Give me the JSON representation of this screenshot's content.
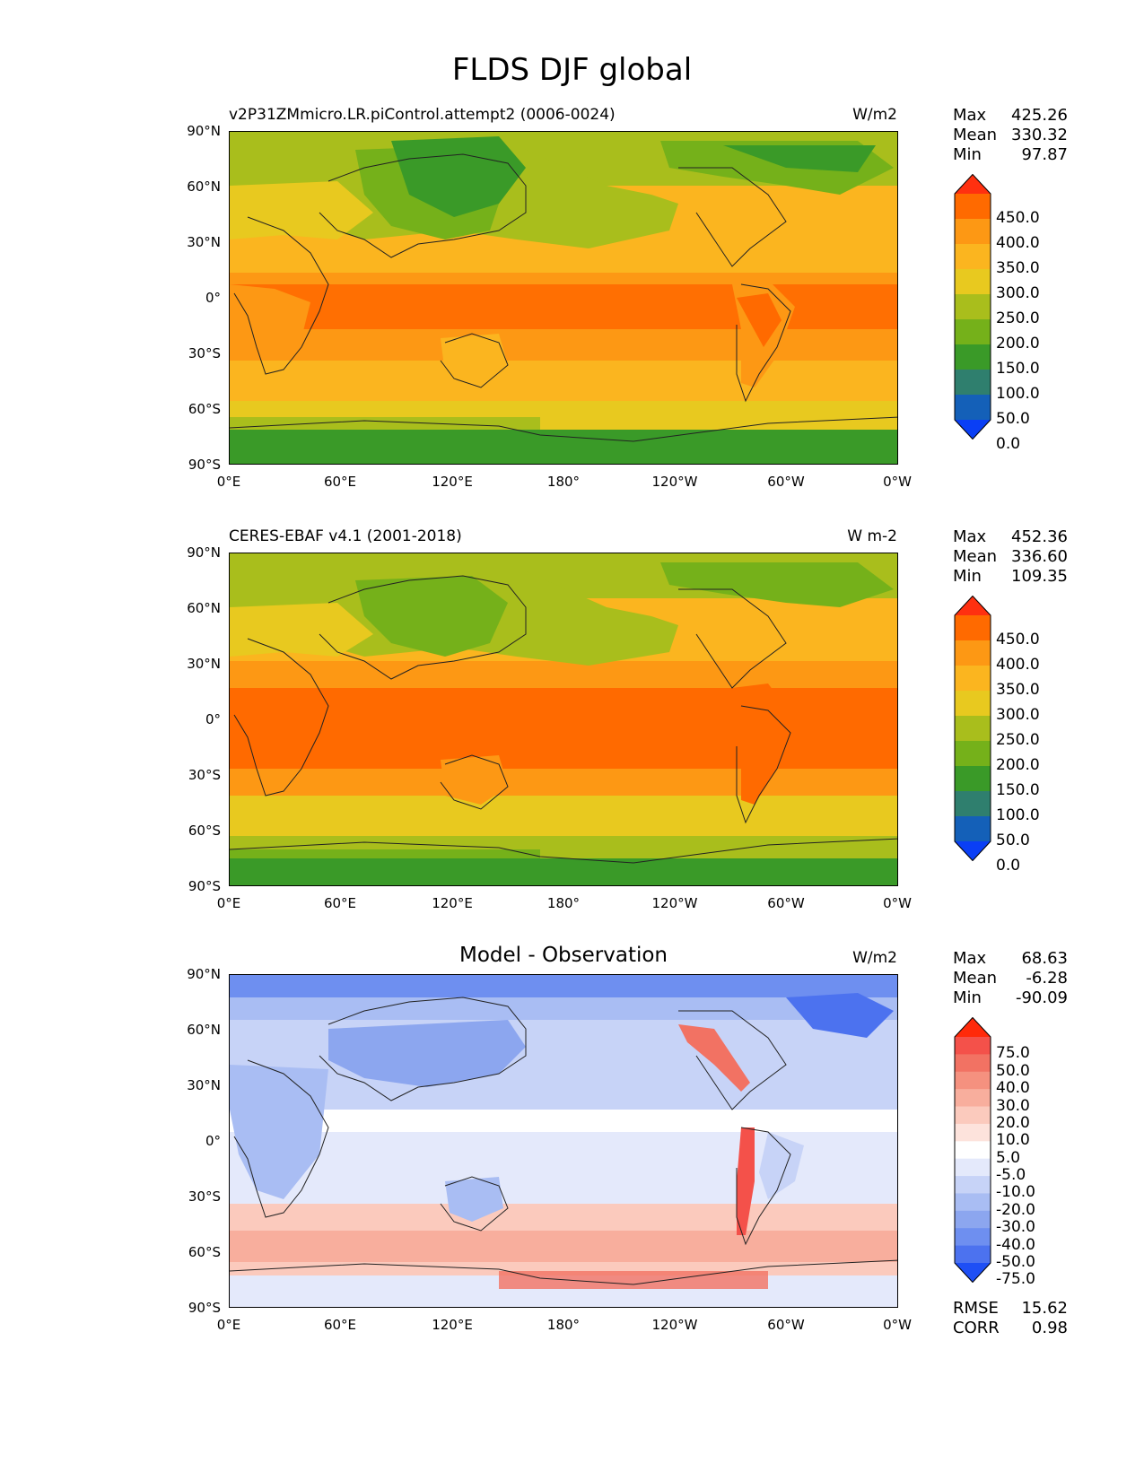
{
  "figure": {
    "title": "FLDS DJF global"
  },
  "axes": {
    "lat_ticks": [
      "90°N",
      "60°N",
      "30°N",
      "0°",
      "30°S",
      "60°S",
      "90°S"
    ],
    "lon_ticks": [
      "0°E",
      "60°E",
      "120°E",
      "180°",
      "120°W",
      "60°W",
      "0°W"
    ]
  },
  "panels": [
    {
      "id": "model",
      "title": "v2P31ZMmicro.LR.piControl.attempt2 (0006-0024)",
      "units": "W/m2",
      "stats": {
        "max_label": "Max",
        "max": "425.26",
        "mean_label": "Mean",
        "mean": "330.32",
        "min_label": "Min",
        "min": "97.87"
      },
      "colorbar": {
        "labels": [
          "450.0",
          "400.0",
          "350.0",
          "300.0",
          "250.0",
          "200.0",
          "150.0",
          "100.0",
          "50.0",
          "0.0"
        ],
        "colors": [
          "#ff3010",
          "#ff6a00",
          "#fd9814",
          "#fbb51f",
          "#e8c91f",
          "#a9be1c",
          "#75b11a",
          "#3a9a28",
          "#2f7f6e",
          "#1460b8",
          "#0a3ff5"
        ]
      }
    },
    {
      "id": "obs",
      "title": "CERES-EBAF v4.1 (2001-2018)",
      "units": "W m-2",
      "stats": {
        "max_label": "Max",
        "max": "452.36",
        "mean_label": "Mean",
        "mean": "336.60",
        "min_label": "Min",
        "min": "109.35"
      },
      "colorbar": {
        "labels": [
          "450.0",
          "400.0",
          "350.0",
          "300.0",
          "250.0",
          "200.0",
          "150.0",
          "100.0",
          "50.0",
          "0.0"
        ],
        "colors": [
          "#ff3010",
          "#ff6a00",
          "#fd9814",
          "#fbb51f",
          "#e8c91f",
          "#a9be1c",
          "#75b11a",
          "#3a9a28",
          "#2f7f6e",
          "#1460b8",
          "#0a3ff5"
        ]
      }
    },
    {
      "id": "diff",
      "title": "Model - Observation",
      "units": "W/m2",
      "stats": {
        "max_label": "Max",
        "max": "68.63",
        "mean_label": "Mean",
        "mean": "-6.28",
        "min_label": "Min",
        "min": "-90.09"
      },
      "colorbar": {
        "labels": [
          "75.0",
          "50.0",
          "40.0",
          "30.0",
          "20.0",
          "10.0",
          "5.0",
          "-5.0",
          "-10.0",
          "-20.0",
          "-30.0",
          "-40.0",
          "-50.0",
          "-75.0"
        ],
        "colors": [
          "#ff2a0a",
          "#f4514a",
          "#f27263",
          "#f5917f",
          "#f8ae9d",
          "#fbcabd",
          "#fde3dc",
          "#ffffff",
          "#e4e9fb",
          "#c7d3f7",
          "#a9bdf3",
          "#8ca6ef",
          "#6e8ff0",
          "#4c72ef",
          "#1e4ff5"
        ]
      },
      "rmse_label": "RMSE",
      "rmse": "15.62",
      "corr_label": "CORR",
      "corr": "0.98"
    }
  ]
}
